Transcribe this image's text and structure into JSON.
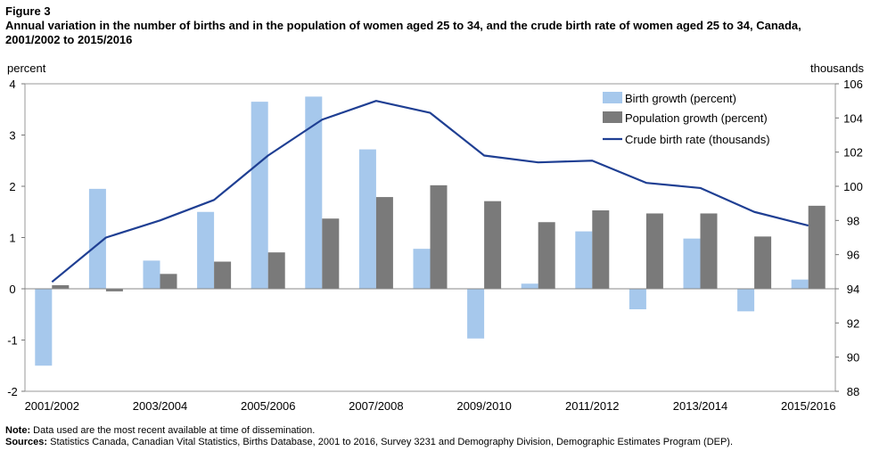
{
  "figure": {
    "label": "Figure 3",
    "title": "Annual variation in the number of births and in the population of women aged 25 to 34, and the crude birth rate of women aged 25 to 34, Canada, 2001/2002 to 2015/2016"
  },
  "notes": {
    "note_label": "Note:",
    "note_text": " Data used are the most recent available at time of dissemination.",
    "sources_label": "Sources:",
    "sources_text": " Statistics Canada, Canadian Vital Statistics, Births Database, 2001 to 2016, Survey 3231 and Demography Division, Demographic Estimates Program (DEP)."
  },
  "chart_data": {
    "type": "bar",
    "categories": [
      "2001/2002",
      "2002/2003",
      "2003/2004",
      "2004/2005",
      "2005/2006",
      "2006/2007",
      "2007/2008",
      "2008/2009",
      "2009/2010",
      "2010/2011",
      "2011/2012",
      "2012/2013",
      "2013/2014",
      "2014/2015",
      "2015/2016"
    ],
    "tick_labels_shown": [
      "2001/2002",
      "2003/2004",
      "2005/2006",
      "2007/2008",
      "2009/2010",
      "2011/2012",
      "2013/2014",
      "2015/2016"
    ],
    "series": [
      {
        "name": "Birth growth (percent)",
        "type": "bar",
        "axis": "left",
        "color": "#a6c8ec",
        "values": [
          -1.5,
          1.95,
          0.55,
          1.5,
          3.65,
          3.75,
          2.72,
          0.78,
          -0.97,
          0.1,
          1.12,
          -0.4,
          0.98,
          -0.44,
          0.18
        ]
      },
      {
        "name": "Population growth (percent)",
        "type": "bar",
        "axis": "left",
        "color": "#7a7a7a",
        "values": [
          0.07,
          -0.05,
          0.29,
          0.53,
          0.71,
          1.37,
          1.79,
          2.02,
          1.71,
          1.3,
          1.53,
          1.47,
          1.47,
          1.02,
          1.62
        ]
      },
      {
        "name": "Crude birth rate (thousands)",
        "type": "line",
        "axis": "right",
        "color": "#1f3f93",
        "values": [
          94.4,
          97.0,
          98.0,
          99.2,
          101.8,
          103.9,
          105.0,
          104.3,
          101.8,
          101.4,
          101.5,
          100.2,
          99.9,
          98.5,
          97.7
        ]
      }
    ],
    "ylabel": "percent",
    "y2label": "thousands",
    "ylim": [
      -2,
      4
    ],
    "y_ticks": [
      "-2",
      "-1",
      "0",
      "1",
      "2",
      "3",
      "4"
    ],
    "y2lim": [
      88,
      106
    ],
    "y2_ticks": [
      "88",
      "90",
      "92",
      "94",
      "96",
      "98",
      "100",
      "102",
      "104",
      "106"
    ],
    "grid": false,
    "legend_position": "top-right"
  }
}
